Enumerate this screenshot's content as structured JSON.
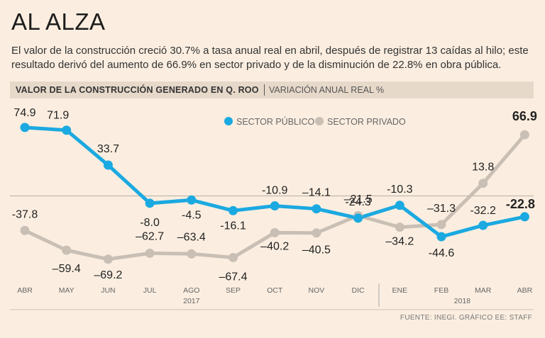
{
  "header": {
    "title": "AL ALZA",
    "subtitle": "El valor de la construcción creció 30.7% a tasa anual real en abril, después de registrar 13 caídas al hilo; este resultado derivó del aumento de 66.9% en sector privado y de la disminución de 22.8% en obra pública."
  },
  "panel": {
    "title": "VALOR DE LA CONSTRUCCIÓN GENERADO EN Q. ROO",
    "subtitle": "VARIACIÓN ANUAL REAL %"
  },
  "source": "FUENTE: INEGI. GRÁFICO EE: STAFF",
  "colors": {
    "publico": "#1ba9e1",
    "privado": "#c9bfb4",
    "background": "#fbeee0",
    "band": "#e7d9ca"
  },
  "chart_data": {
    "type": "line",
    "title": "VALOR DE LA CONSTRUCCIÓN GENERADO EN Q. ROO",
    "ylabel": "VARIACIÓN ANUAL REAL %",
    "categories": [
      "ABR",
      "MAY",
      "JUN",
      "JUL",
      "AGO",
      "SEP",
      "OCT",
      "NOV",
      "DIC",
      "ENE",
      "FEB",
      "MAR",
      "ABR"
    ],
    "years": [
      {
        "label": "2017",
        "start": 0,
        "end": 8
      },
      {
        "label": "2018",
        "start": 9,
        "end": 12
      }
    ],
    "legend": {
      "position": "top-right"
    },
    "series": [
      {
        "name": "SECTOR PÚBLICO",
        "values": [
          74.9,
          71.9,
          33.7,
          -8.0,
          -4.5,
          -16.1,
          -10.9,
          -14.1,
          -24.3,
          -10.3,
          -44.6,
          -32.2,
          -22.8
        ],
        "labels": [
          "74.9",
          "71.9",
          "33.7",
          "-8.0",
          "-4.5",
          "-16.1",
          "-10.9",
          "–14.1",
          "-24.3",
          "-10.3",
          "-44.6",
          "-32.2",
          "-22.8"
        ]
      },
      {
        "name": "SECTOR PRIVADO",
        "values": [
          -37.8,
          -59.4,
          -69.2,
          -62.7,
          -63.4,
          -67.4,
          -40.2,
          -40.5,
          -21.5,
          -34.2,
          -31.3,
          13.8,
          66.9
        ],
        "labels": [
          "-37.8",
          "–59.4",
          "–69.2",
          "–62.7",
          "–63.4",
          "–67.4",
          "–40.2",
          "–40.5",
          "–21.5",
          "–34.2",
          "–31.3",
          "13.8",
          "66.9"
        ]
      }
    ]
  }
}
